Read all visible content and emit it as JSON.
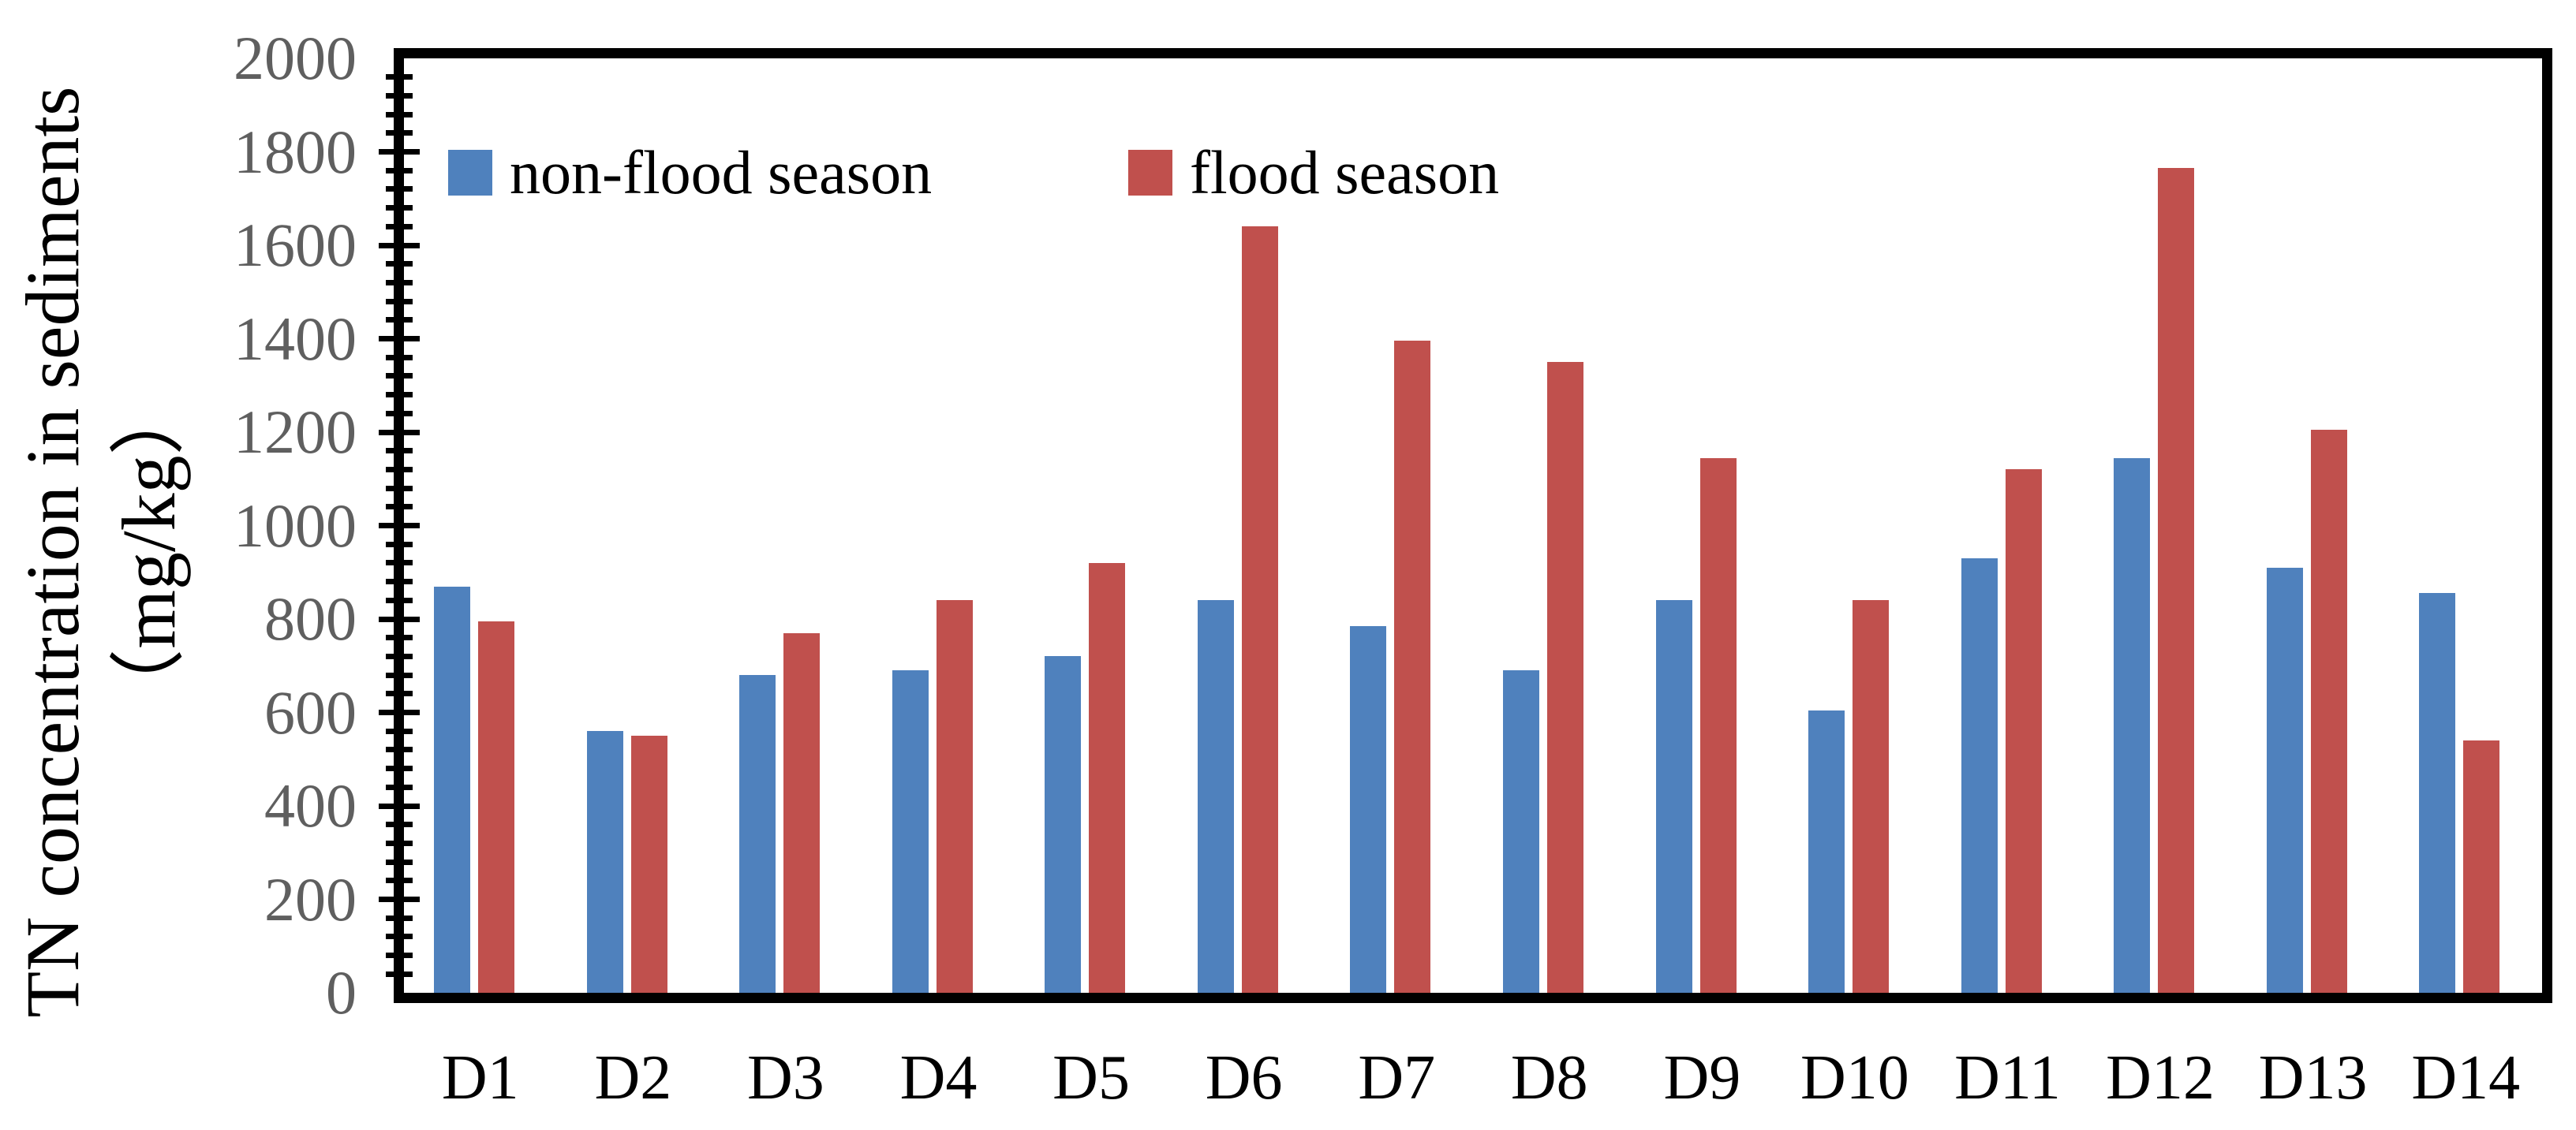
{
  "figure": {
    "background": "#ffffff",
    "axis_color": "#000000",
    "tick_label_color": "#5f5f5f"
  },
  "y_axis": {
    "title_line1": "TN concentration in sediments",
    "title_line2": "（mg/kg）",
    "tick_labels": [
      "0",
      "200",
      "400",
      "600",
      "800",
      "1000",
      "1200",
      "1400",
      "1600",
      "1800",
      "2000"
    ]
  },
  "x_axis": {
    "tick_labels": [
      "D1",
      "D2",
      "D3",
      "D4",
      "D5",
      "D6",
      "D7",
      "D8",
      "D9",
      "D10",
      "D11",
      "D12",
      "D13",
      "D14"
    ]
  },
  "legend": {
    "items": [
      {
        "label": "non-flood season",
        "color": "#4F81BD"
      },
      {
        "label": "flood season",
        "color": "#C0504D"
      }
    ]
  },
  "chart_data": {
    "type": "bar",
    "title": "",
    "xlabel": "",
    "ylabel": "TN concentration in sediments（mg/kg）",
    "categories": [
      "D1",
      "D2",
      "D3",
      "D4",
      "D5",
      "D6",
      "D7",
      "D8",
      "D9",
      "D10",
      "D11",
      "D12",
      "D13",
      "D14"
    ],
    "series": [
      {
        "name": "non-flood season",
        "color": "#4F81BD",
        "values": [
          870,
          560,
          680,
          690,
          720,
          840,
          785,
          690,
          840,
          605,
          930,
          1145,
          910,
          855
        ]
      },
      {
        "name": "flood season",
        "color": "#C0504D",
        "values": [
          795,
          550,
          770,
          840,
          920,
          1640,
          1395,
          1350,
          1145,
          840,
          1120,
          1765,
          1205,
          540
        ]
      }
    ],
    "ylim": [
      0,
      2000
    ],
    "ytick_step": 200,
    "minor_tick_step": 40,
    "grid": false,
    "legend_position": "inside-top-left"
  }
}
